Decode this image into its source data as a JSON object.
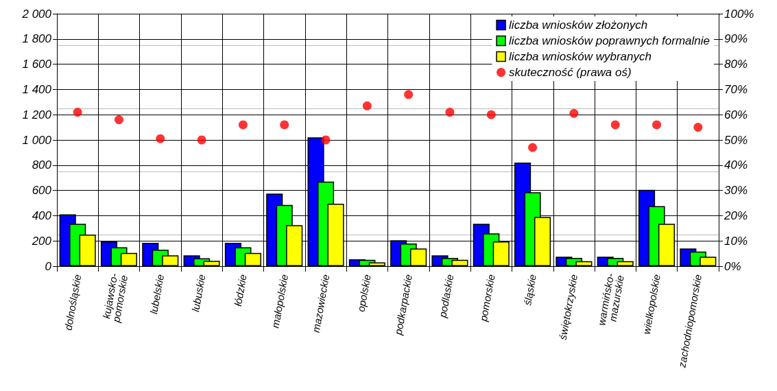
{
  "chart_data": {
    "type": "bar",
    "categories": [
      "dolnośląskie",
      "kujawsko-pomorskie",
      "lubelskie",
      "lubuskie",
      "łódzkie",
      "małopolskie",
      "mazowieckie",
      "opolskie",
      "podkarpackie",
      "podlaskie",
      "pomorskie",
      "śląskie",
      "świętokrzyskie",
      "warmińsko-mazurskie",
      "wielkopolskie",
      "zachodniopomorskie"
    ],
    "series": [
      {
        "name": "liczba wniosków złożonych",
        "color": "#0000ff",
        "values": [
          410,
          195,
          185,
          85,
          185,
          575,
          1020,
          55,
          205,
          85,
          335,
          820,
          75,
          75,
          605,
          140
        ]
      },
      {
        "name": "liczba wniosków poprawnych formalnie",
        "color": "#00ff00",
        "values": [
          335,
          150,
          130,
          62,
          150,
          485,
          670,
          50,
          180,
          65,
          260,
          585,
          65,
          65,
          475,
          115
        ]
      },
      {
        "name": "liczba wniosków wybranych",
        "color": "#ffff00",
        "values": [
          250,
          105,
          85,
          42,
          105,
          325,
          495,
          30,
          140,
          50,
          195,
          390,
          40,
          40,
          335,
          75
        ]
      },
      {
        "name": "skuteczność (prawa oś)",
        "type": "scatter",
        "axis": "y2",
        "color": "#ff0000",
        "values": [
          61,
          58,
          50.5,
          50,
          56,
          56,
          50,
          63.5,
          68,
          61,
          60,
          47,
          60.5,
          56,
          56,
          55
        ]
      }
    ],
    "ylim": [
      0,
      2000
    ],
    "yticks": [
      0,
      200,
      400,
      600,
      800,
      {
        "value": 1000,
        "label": "1 000"
      },
      {
        "value": 1200,
        "label": "1 200"
      },
      {
        "value": 1400,
        "label": "1 400"
      },
      {
        "value": 1600,
        "label": "1 600"
      },
      {
        "value": 1800,
        "label": "1 800"
      },
      {
        "value": 2000,
        "label": "2 000"
      }
    ],
    "y2lim": [
      0,
      100
    ],
    "y2ticks": [
      {
        "value": 0,
        "label": "0%"
      },
      {
        "value": 10,
        "label": "10%"
      },
      {
        "value": 20,
        "label": "20%"
      },
      {
        "value": 30,
        "label": "30%"
      },
      {
        "value": 40,
        "label": "40%"
      },
      {
        "value": 50,
        "label": "50%"
      },
      {
        "value": 60,
        "label": "60%"
      },
      {
        "value": 70,
        "label": "70%"
      },
      {
        "value": 80,
        "label": "80%"
      },
      {
        "value": 90,
        "label": "90%"
      },
      {
        "value": 100,
        "label": "100%"
      }
    ],
    "grid": true,
    "legend": "top right",
    "marker": "circle"
  }
}
